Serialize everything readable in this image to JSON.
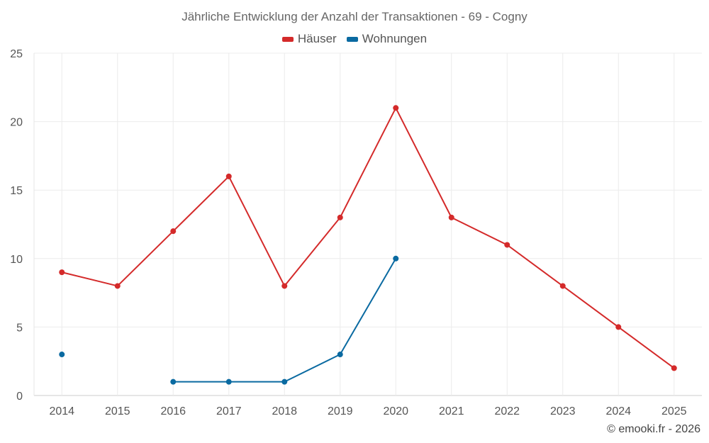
{
  "chart_data": {
    "type": "line",
    "title": "Jährliche Entwicklung der Anzahl der Transaktionen - 69 - Cogny",
    "categories": [
      "2014",
      "2015",
      "2016",
      "2017",
      "2018",
      "2019",
      "2020",
      "2021",
      "2022",
      "2023",
      "2024",
      "2025"
    ],
    "yticks": [
      "0",
      "5",
      "10",
      "15",
      "20",
      "25"
    ],
    "ylim": [
      0,
      25
    ],
    "series": [
      {
        "name": "Häuser",
        "color": "#d42a2a",
        "values": [
          9,
          8,
          12,
          16,
          8,
          13,
          21,
          13,
          11,
          8,
          5,
          2
        ]
      },
      {
        "name": "Wohnungen",
        "color": "#0a6aa1",
        "values": [
          3,
          null,
          1,
          1,
          1,
          3,
          10,
          null,
          null,
          null,
          null,
          null
        ]
      }
    ],
    "legend_position": "top-center",
    "grid": true
  },
  "credit": "© emooki.fr - 2026"
}
